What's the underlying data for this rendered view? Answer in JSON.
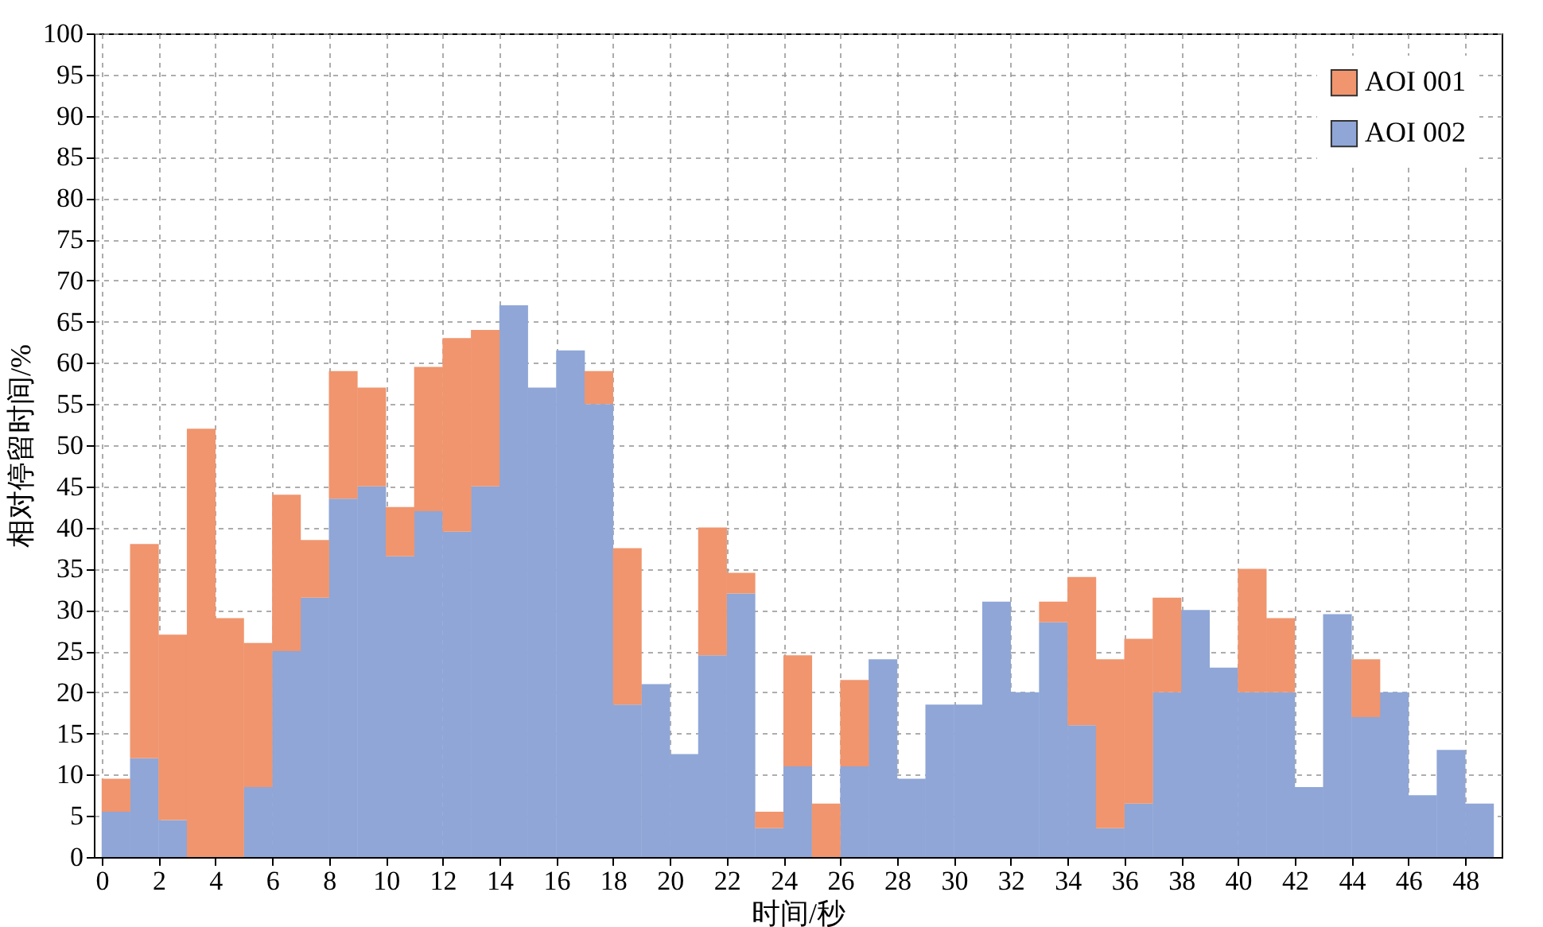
{
  "chart_data": {
    "type": "bar",
    "xlabel": "时间/秒",
    "ylabel": "相对停留时间/%",
    "x": [
      0.5,
      1.5,
      2.5,
      3.5,
      4.5,
      5.5,
      6.5,
      7.5,
      8.5,
      9.5,
      10.5,
      11.5,
      12.5,
      13.5,
      14.5,
      15.5,
      16.5,
      17.5,
      18.5,
      19.5,
      20.5,
      21.5,
      22.5,
      23.5,
      24.5,
      25.5,
      26.5,
      27.5,
      28.5,
      29.5,
      30.5,
      31.5,
      32.5,
      33.5,
      34.5,
      35.5,
      36.5,
      37.5,
      38.5,
      39.5,
      40.5,
      41.5,
      42.5,
      43.5,
      44.5,
      45.5,
      46.5,
      47.5,
      48.5
    ],
    "stacked": true,
    "series": [
      {
        "name": "AOI 002",
        "color": "#8fa6d7",
        "values": [
          5.5,
          12,
          4.5,
          0,
          0,
          8.5,
          25,
          31.5,
          43.5,
          45,
          36.5,
          42,
          39.5,
          45,
          67,
          57,
          61.5,
          55,
          18.5,
          21,
          12.5,
          24.5,
          32,
          3.5,
          11,
          0,
          11,
          24,
          9.5,
          18.5,
          18.5,
          31,
          20,
          28.5,
          16,
          3.5,
          6.5,
          20,
          30,
          23,
          20,
          20,
          8.5,
          29.5,
          17,
          20,
          7.5,
          13,
          6.5
        ]
      },
      {
        "name": "AOI 001",
        "color": "#f0956e",
        "values": [
          4,
          26,
          22.5,
          52,
          29,
          17.5,
          19,
          7,
          15.5,
          12,
          6,
          17.5,
          23.5,
          19,
          0,
          0,
          0,
          4,
          19,
          0,
          0,
          15.5,
          2.5,
          2,
          13.5,
          6.5,
          10.5,
          0,
          0,
          0,
          0,
          0,
          0,
          2.5,
          18,
          20.5,
          20,
          11.5,
          0,
          0,
          15,
          9,
          0,
          0,
          7,
          0,
          0,
          0,
          0
        ]
      }
    ],
    "xlim": [
      0,
      49
    ],
    "xticks": [
      0,
      2,
      4,
      6,
      8,
      10,
      12,
      14,
      16,
      18,
      20,
      22,
      24,
      26,
      28,
      30,
      32,
      34,
      36,
      38,
      40,
      42,
      44,
      46,
      48
    ],
    "ylim": [
      0,
      100
    ],
    "yticks": [
      0,
      5,
      10,
      15,
      20,
      25,
      30,
      35,
      40,
      45,
      50,
      55,
      60,
      65,
      70,
      75,
      80,
      85,
      90,
      95,
      100
    ],
    "grid": true,
    "legend": "top right"
  }
}
